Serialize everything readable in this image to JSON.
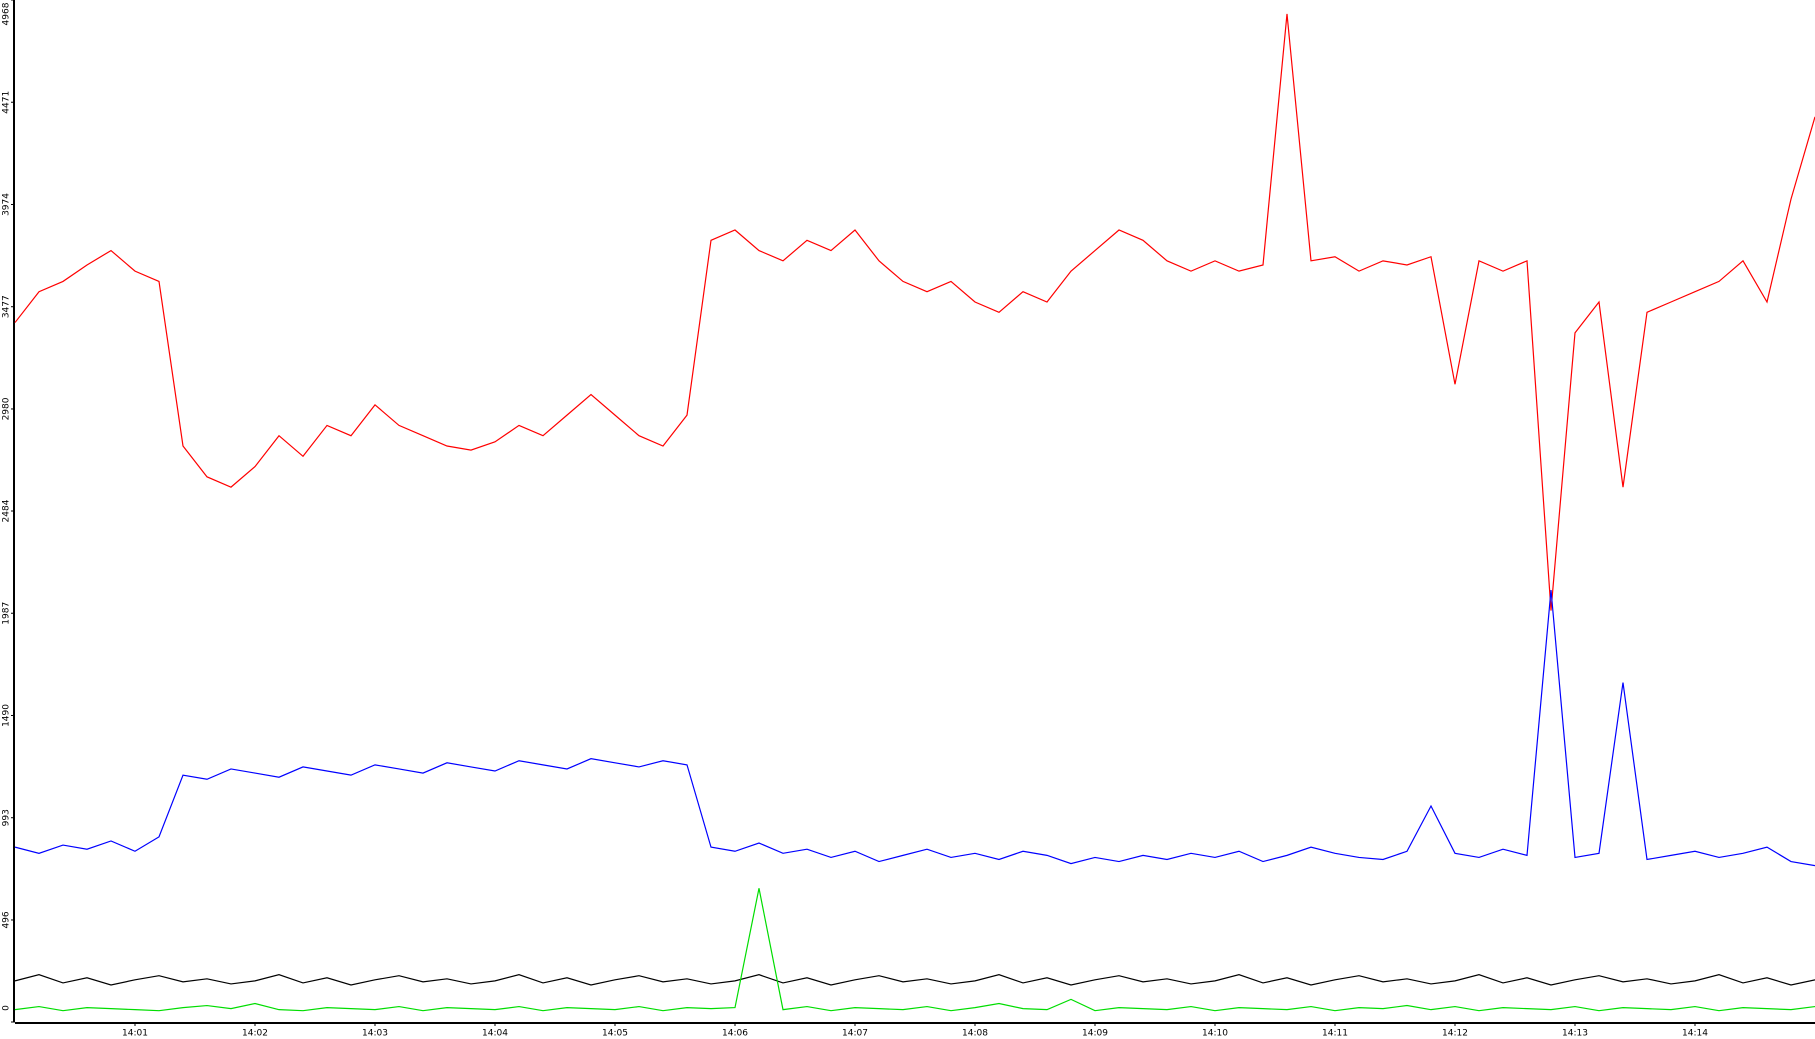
{
  "chart_data": {
    "type": "line",
    "x": [
      0,
      0.2,
      0.4,
      0.6,
      0.8,
      1,
      1.2,
      1.4,
      1.6,
      1.8,
      2,
      2.2,
      2.4,
      2.6,
      2.8,
      3,
      3.2,
      3.4,
      3.6,
      3.8,
      4,
      4.2,
      4.4,
      4.6,
      4.8,
      5,
      5.2,
      5.4,
      5.6,
      5.8,
      6,
      6.2,
      6.4,
      6.6,
      6.8,
      7,
      7.2,
      7.4,
      7.6,
      7.8,
      8,
      8.2,
      8.4,
      8.6,
      8.8,
      9,
      9.2,
      9.4,
      9.6,
      9.8,
      10,
      10.2,
      10.4,
      10.6,
      10.8,
      11,
      11.2,
      11.4,
      11.6,
      11.8,
      12,
      12.2,
      12.4,
      12.6,
      12.8,
      13,
      13.2,
      13.4,
      13.6,
      13.8,
      14,
      14.2,
      14.4,
      14.6,
      14.8,
      15
    ],
    "xlim": [
      0,
      15
    ],
    "xticks": [
      {
        "value": 1,
        "label": "14:01"
      },
      {
        "value": 2,
        "label": "14:02"
      },
      {
        "value": 3,
        "label": "14:03"
      },
      {
        "value": 4,
        "label": "14:04"
      },
      {
        "value": 5,
        "label": "14:05"
      },
      {
        "value": 6,
        "label": "14:06"
      },
      {
        "value": 7,
        "label": "14:07"
      },
      {
        "value": 8,
        "label": "14:08"
      },
      {
        "value": 9,
        "label": "14:09"
      },
      {
        "value": 10,
        "label": "14:10"
      },
      {
        "value": 11,
        "label": "14:11"
      },
      {
        "value": 12,
        "label": "14:12"
      },
      {
        "value": 13,
        "label": "14:13"
      },
      {
        "value": 14,
        "label": "14:14"
      }
    ],
    "ylim": [
      0,
      4968
    ],
    "yticks": [
      0,
      496,
      993,
      1490,
      1987,
      2484,
      2980,
      3477,
      3974,
      4471,
      4968
    ],
    "series": [
      {
        "color": "#ff0000",
        "values": [
          3400,
          3550,
          3600,
          3680,
          3750,
          3650,
          3600,
          2800,
          2650,
          2600,
          2700,
          2850,
          2750,
          2900,
          2850,
          3000,
          2900,
          2850,
          2800,
          2780,
          2820,
          2900,
          2850,
          2950,
          3050,
          2950,
          2850,
          2800,
          2950,
          3800,
          3850,
          3750,
          3700,
          3800,
          3750,
          3850,
          3700,
          3600,
          3550,
          3600,
          3500,
          3450,
          3550,
          3500,
          3650,
          3750,
          3850,
          3800,
          3700,
          3650,
          3700,
          3650,
          3680,
          4900,
          3700,
          3720,
          3650,
          3700,
          3680,
          3720,
          3100,
          3700,
          3650,
          3700,
          2000,
          3350,
          3500,
          2600,
          3450,
          3500,
          3550,
          3600,
          3700,
          3500,
          4000,
          4400
        ]
      },
      {
        "color": "#0000ff",
        "values": [
          850,
          820,
          860,
          840,
          880,
          830,
          900,
          1200,
          1180,
          1230,
          1210,
          1190,
          1240,
          1220,
          1200,
          1250,
          1230,
          1210,
          1260,
          1240,
          1220,
          1270,
          1250,
          1230,
          1280,
          1260,
          1240,
          1270,
          1250,
          850,
          830,
          870,
          820,
          840,
          800,
          830,
          780,
          810,
          840,
          800,
          820,
          790,
          830,
          810,
          770,
          800,
          780,
          810,
          790,
          820,
          800,
          830,
          780,
          810,
          850,
          820,
          800,
          790,
          830,
          1050,
          820,
          800,
          840,
          810,
          2100,
          800,
          820,
          1650,
          790,
          810,
          830,
          800,
          820,
          850,
          780,
          760
        ]
      },
      {
        "color": "#000000",
        "values": [
          200,
          230,
          190,
          215,
          180,
          205,
          225,
          195,
          210,
          185,
          200,
          230,
          190,
          215,
          180,
          205,
          225,
          195,
          210,
          185,
          200,
          230,
          190,
          215,
          180,
          205,
          225,
          195,
          210,
          185,
          200,
          230,
          190,
          215,
          180,
          205,
          225,
          195,
          210,
          185,
          200,
          230,
          190,
          215,
          180,
          205,
          225,
          195,
          210,
          185,
          200,
          230,
          190,
          215,
          180,
          205,
          225,
          195,
          210,
          185,
          200,
          230,
          190,
          215,
          180,
          205,
          225,
          195,
          210,
          185,
          200,
          230,
          190,
          215,
          180,
          205
        ]
      },
      {
        "color": "#00dd00",
        "values": [
          60,
          75,
          55,
          70,
          65,
          60,
          55,
          70,
          80,
          65,
          90,
          60,
          55,
          70,
          65,
          60,
          75,
          55,
          70,
          65,
          60,
          75,
          55,
          70,
          65,
          60,
          75,
          55,
          70,
          65,
          70,
          650,
          60,
          75,
          55,
          70,
          65,
          60,
          75,
          55,
          70,
          90,
          65,
          60,
          110,
          55,
          70,
          65,
          60,
          75,
          55,
          70,
          65,
          60,
          75,
          55,
          70,
          65,
          80,
          60,
          75,
          55,
          70,
          65,
          60,
          75,
          55,
          70,
          65,
          60,
          75,
          55,
          70,
          65,
          60,
          75
        ]
      }
    ]
  }
}
